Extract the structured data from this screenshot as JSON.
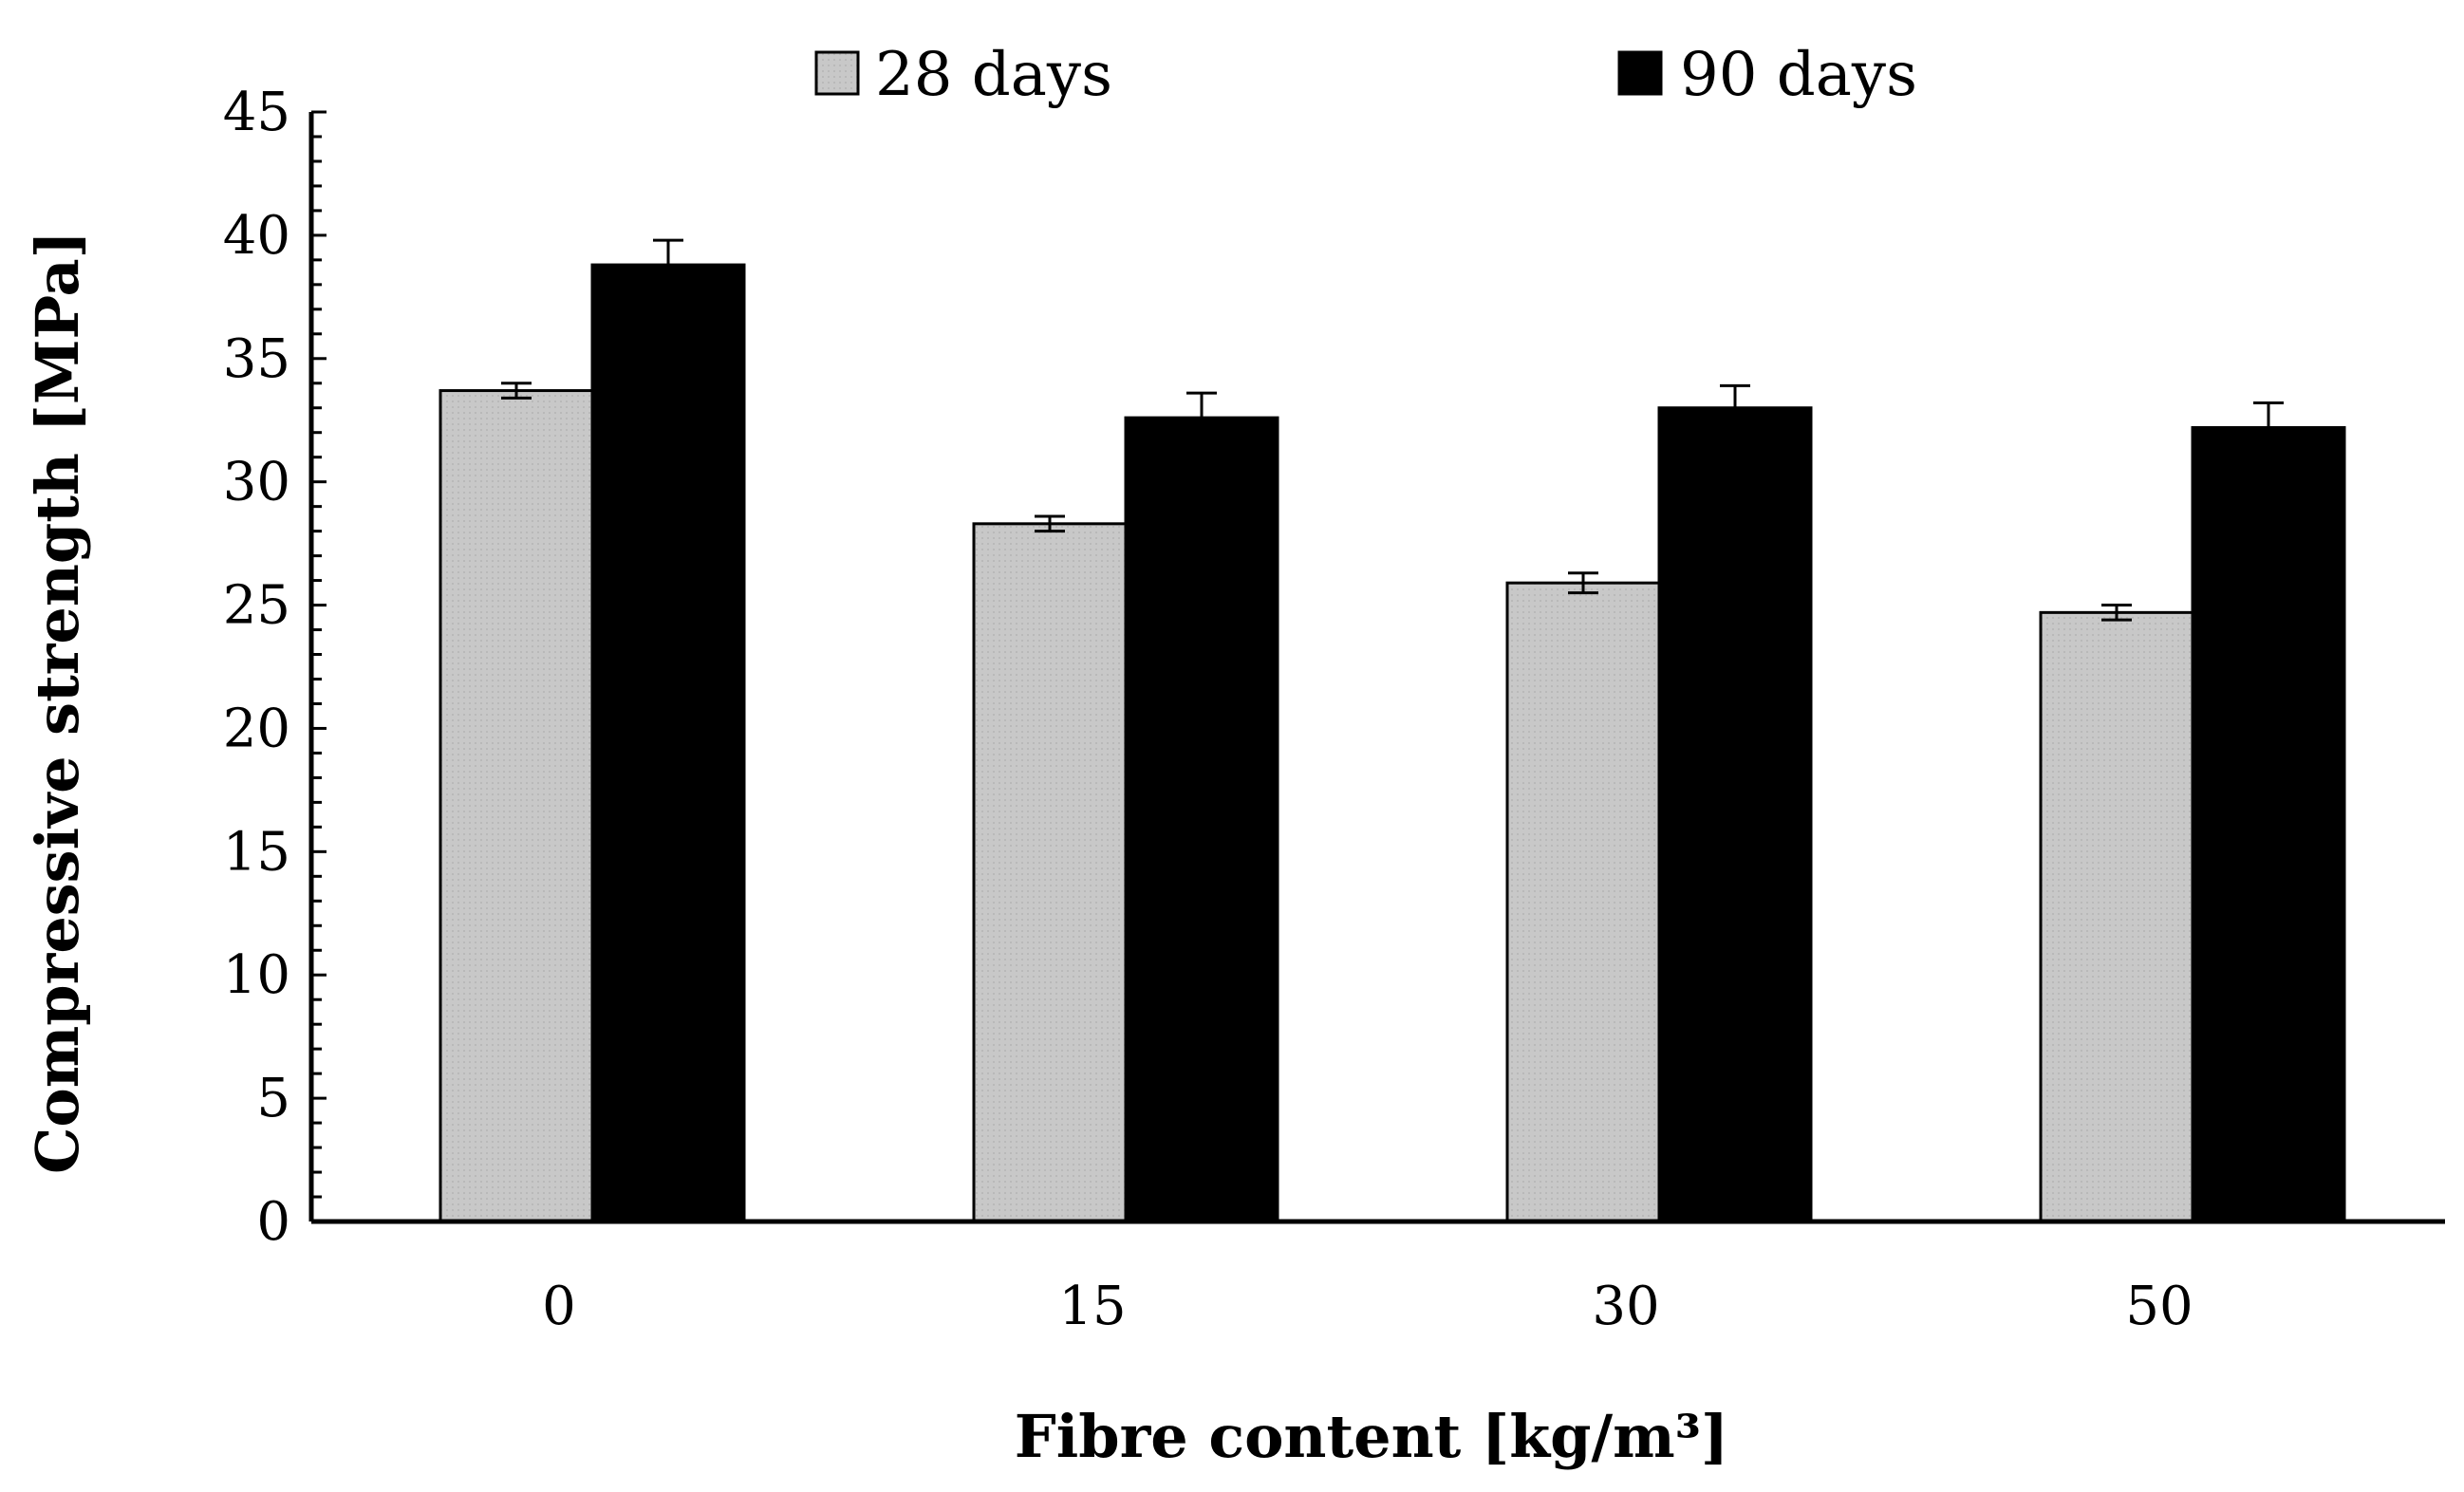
{
  "chart_data": {
    "type": "bar",
    "categories": [
      "0",
      "15",
      "30",
      "50"
    ],
    "series": [
      {
        "name": "28 days",
        "values": [
          33.7,
          28.3,
          25.9,
          24.7
        ],
        "errors": [
          0.3,
          0.3,
          0.4,
          0.3
        ],
        "color": "#c8c8c8"
      },
      {
        "name": "90 days",
        "values": [
          38.8,
          32.6,
          33.0,
          32.2
        ],
        "errors": [
          1.0,
          1.0,
          0.9,
          1.0
        ],
        "color": "#000000"
      }
    ],
    "xlabel": "Fibre content [kg/m³]",
    "ylabel": "Compressive strength [MPa]",
    "ylim": [
      0,
      45
    ],
    "yticks": [
      "0",
      "5",
      "10",
      "15",
      "20",
      "25",
      "30",
      "35",
      "40",
      "45"
    ],
    "legend_position": "top-center",
    "grid": false
  }
}
